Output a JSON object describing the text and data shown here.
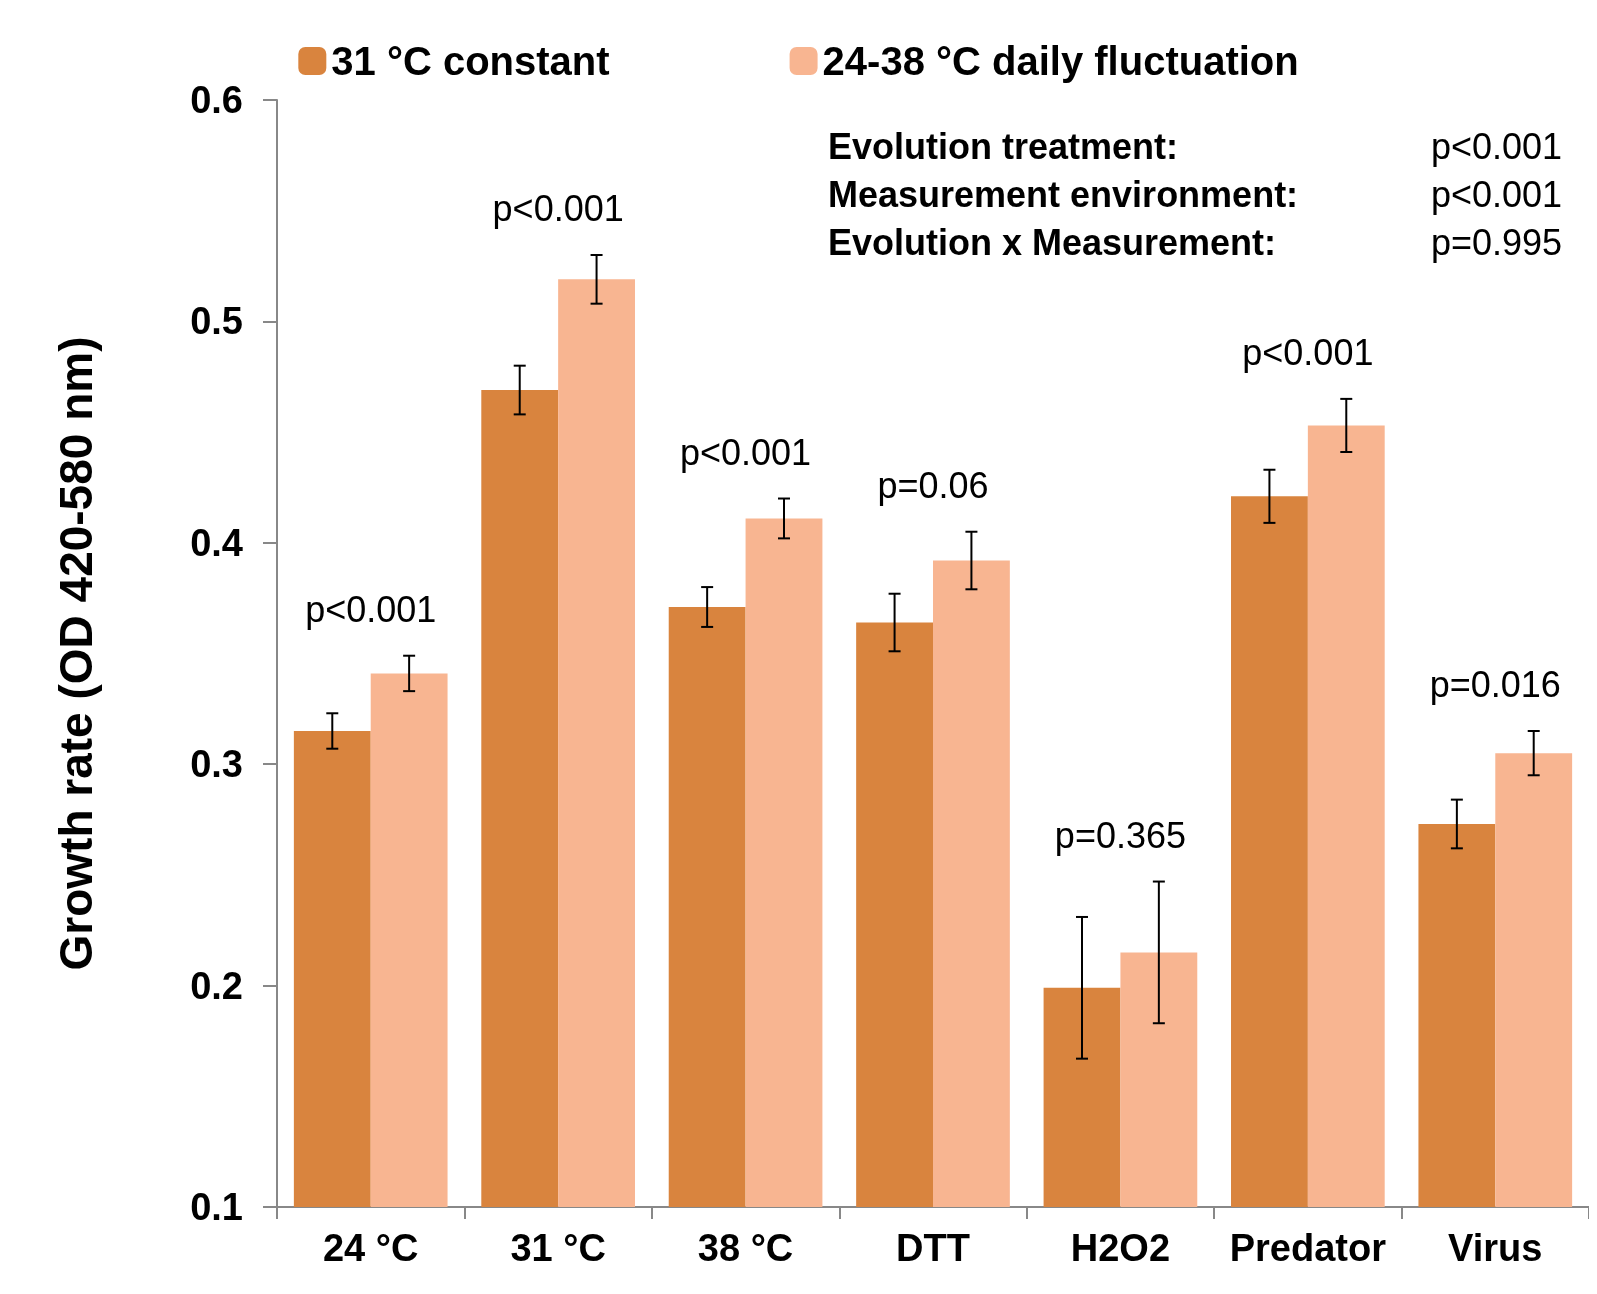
{
  "chart_data": {
    "type": "bar",
    "ylabel": "Growth rate (OD 420-580 nm)",
    "categories": [
      "24 °C",
      "31 °C",
      "38 °C",
      "DTT",
      "H2O2",
      "Predator",
      "Virus"
    ],
    "series": [
      {
        "name": "31 °C constant",
        "color": "#d9843e",
        "values": [
          0.315,
          0.469,
          0.371,
          0.364,
          0.199,
          0.421,
          0.273
        ],
        "errors": [
          0.008,
          0.011,
          0.009,
          0.013,
          0.032,
          0.012,
          0.011
        ]
      },
      {
        "name": "24-38 °C daily fluctuation",
        "color": "#f8b591",
        "values": [
          0.341,
          0.519,
          0.411,
          0.392,
          0.215,
          0.453,
          0.305
        ],
        "errors": [
          0.008,
          0.011,
          0.009,
          0.013,
          0.032,
          0.012,
          0.01
        ]
      }
    ],
    "ylim": [
      0.1,
      0.6
    ],
    "yticks": [
      0.1,
      0.2,
      0.3,
      0.4,
      0.5,
      0.6
    ],
    "grid": false,
    "legend": "top",
    "annotations": [
      "p<0.001",
      "p<0.001",
      "p<0.001",
      "p=0.06",
      "p=0.365",
      "p<0.001",
      "p=0.016",
      "Evolution treatment:",
      "p<0.001",
      "Measurement environment:",
      "p<0.001",
      "Evolution x Measurement:",
      "p=0.995"
    ]
  }
}
